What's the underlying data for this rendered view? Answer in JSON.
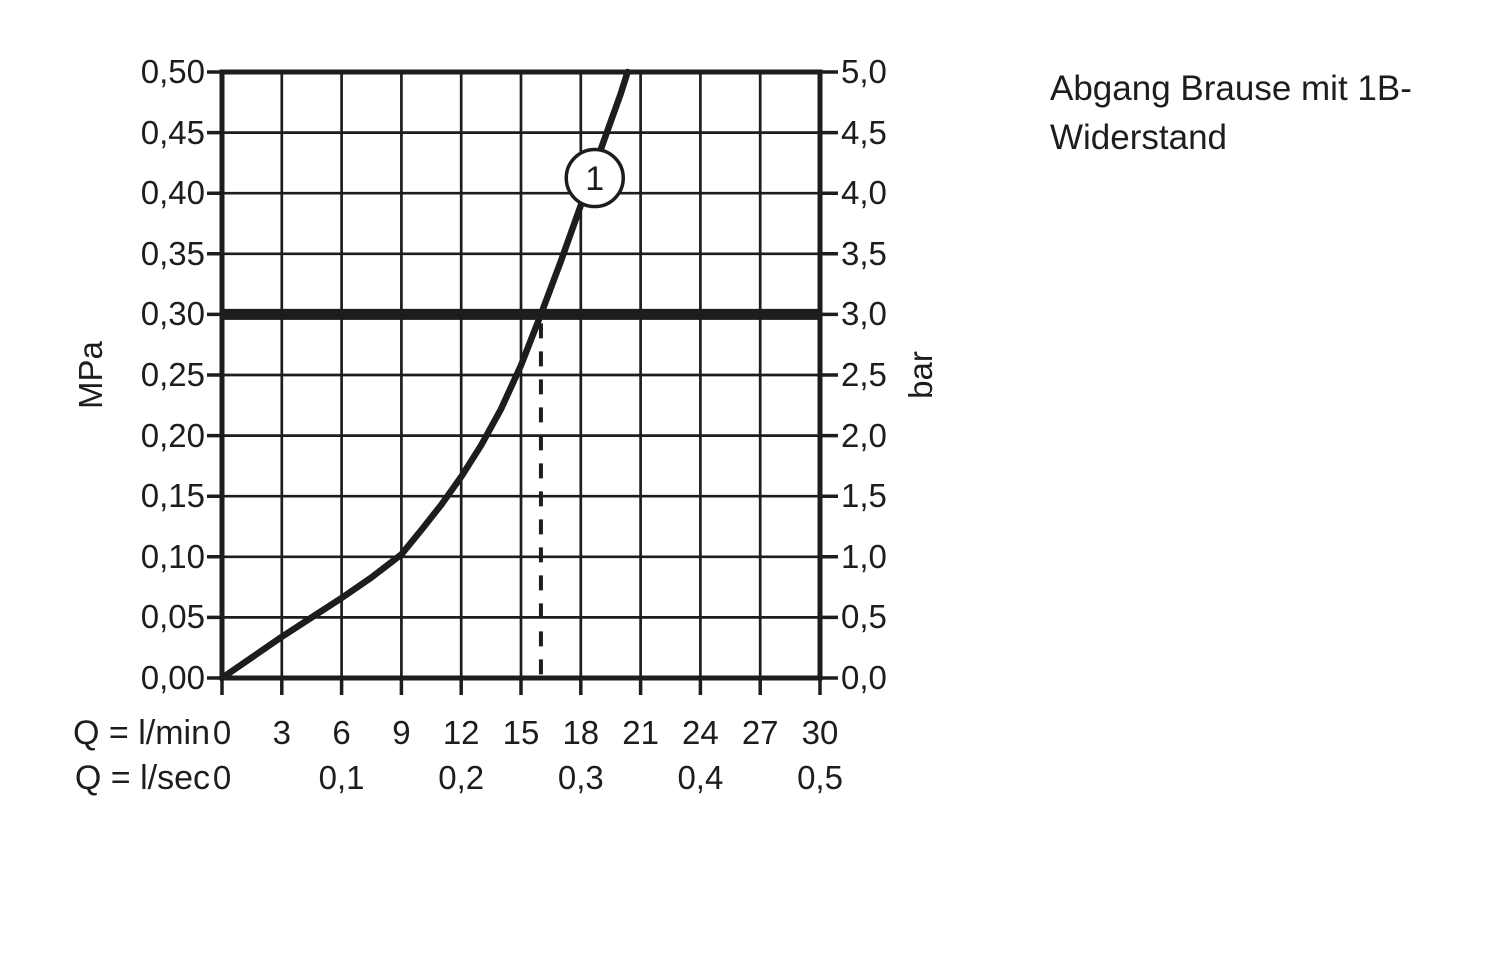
{
  "page": {
    "background": "#ffffff",
    "ink_color": "#1d1d1b"
  },
  "title": {
    "line1": "Abgang Brause mit 1B-",
    "line2": "Widerstand"
  },
  "axis_row_labels": {
    "lmin": "Q = l/min",
    "lsec": "Q = l/sec"
  },
  "units": {
    "left": "MPa",
    "right": "bar"
  },
  "chart_data": {
    "type": "line",
    "title": "Abgang Brause mit 1B-Widerstand",
    "grid": true,
    "legend_position": "none",
    "x_axis_primary": {
      "label": "Q = l/min",
      "range": [
        0,
        30
      ],
      "tick_step": 3,
      "tick_labels": [
        "0",
        "3",
        "6",
        "9",
        "12",
        "15",
        "18",
        "21",
        "24",
        "27",
        "30"
      ]
    },
    "x_axis_secondary": {
      "label": "Q = l/sec",
      "tick_labels": [
        "0",
        "0,1",
        "0,2",
        "0,3",
        "0,4",
        "0,5"
      ],
      "tick_positions_lmin": [
        0,
        6,
        12,
        18,
        24,
        30
      ]
    },
    "y_axis_left": {
      "label": "MPa",
      "range": [
        0,
        0.5
      ],
      "tick_step": 0.05,
      "tick_labels": [
        "0,50",
        "0,45",
        "0,40",
        "0,35",
        "0,30",
        "0,25",
        "0,20",
        "0,15",
        "0,10",
        "0,05",
        "0,00"
      ]
    },
    "y_axis_right": {
      "label": "bar",
      "range": [
        0,
        5
      ],
      "tick_step": 0.5,
      "tick_labels": [
        "5,0",
        "4,5",
        "4,0",
        "3,5",
        "3,0",
        "2,5",
        "2,0",
        "1,5",
        "1,0",
        "0,5",
        "0,0"
      ]
    },
    "series": [
      {
        "name": "1",
        "marker_label": "1",
        "marker_at": {
          "q_lmin": 18.7,
          "p_mpa": 0.4125
        },
        "points_q_lmin_p_mpa": [
          [
            0,
            0
          ],
          [
            1.5,
            0.017
          ],
          [
            3,
            0.034
          ],
          [
            4.5,
            0.05
          ],
          [
            6,
            0.066
          ],
          [
            7.5,
            0.083
          ],
          [
            9,
            0.102
          ],
          [
            10,
            0.122
          ],
          [
            11,
            0.143
          ],
          [
            12,
            0.166
          ],
          [
            13,
            0.192
          ],
          [
            14,
            0.222
          ],
          [
            15,
            0.258
          ],
          [
            16,
            0.3
          ],
          [
            17,
            0.344
          ],
          [
            18,
            0.39
          ],
          [
            19,
            0.436
          ],
          [
            20,
            0.482
          ],
          [
            20.35,
            0.5
          ]
        ]
      }
    ],
    "reference_line": {
      "p_mpa": 0.3,
      "p_bar": 3.0,
      "style": "thick-horizontal"
    },
    "dashed_guide": {
      "q_lmin": 16,
      "from_p_mpa": 0.3,
      "to_p_mpa": 0
    }
  }
}
